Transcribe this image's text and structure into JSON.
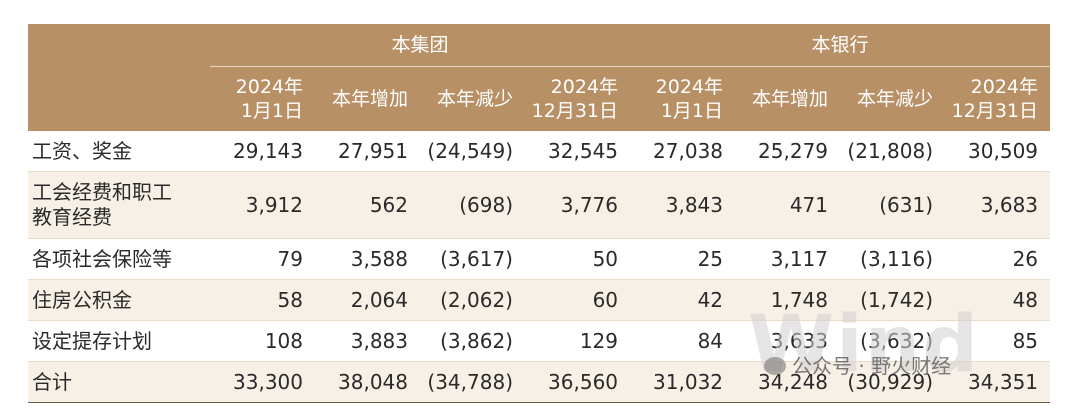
{
  "header": {
    "groups": [
      "本集团",
      "本银行"
    ],
    "columns": [
      [
        "2024年",
        "1月1日"
      ],
      [
        "本年增加"
      ],
      [
        "本年减少"
      ],
      [
        "2024年",
        "12月31日"
      ],
      [
        "2024年",
        "1月1日"
      ],
      [
        "本年增加"
      ],
      [
        "本年减少"
      ],
      [
        "2024年",
        "12月31日"
      ]
    ]
  },
  "rows": [
    {
      "label": [
        "工资、奖金"
      ],
      "values": [
        "29,143",
        "27,951",
        "(24,549)",
        "32,545",
        "27,038",
        "25,279",
        "(21,808)",
        "30,509"
      ]
    },
    {
      "label": [
        "工会经费和职工",
        "教育经费"
      ],
      "values": [
        "3,912",
        "562",
        "(698)",
        "3,776",
        "3,843",
        "471",
        "(631)",
        "3,683"
      ]
    },
    {
      "label": [
        "各项社会保险等"
      ],
      "values": [
        "79",
        "3,588",
        "(3,617)",
        "50",
        "25",
        "3,117",
        "(3,116)",
        "26"
      ]
    },
    {
      "label": [
        "住房公积金"
      ],
      "values": [
        "58",
        "2,064",
        "(2,062)",
        "60",
        "42",
        "1,748",
        "(1,742)",
        "48"
      ]
    },
    {
      "label": [
        "设定提存计划"
      ],
      "values": [
        "108",
        "3,883",
        "(3,862)",
        "129",
        "84",
        "3,633",
        "(3,632)",
        "85"
      ]
    },
    {
      "label": [
        "合计"
      ],
      "values": [
        "33,300",
        "38,048",
        "(34,788)",
        "36,560",
        "31,032",
        "34,248",
        "(30,929)",
        "34,351"
      ]
    }
  ],
  "watermark": {
    "big": "Wind",
    "badge": "公众号 · 野火财经"
  },
  "colors": {
    "header_bg": "#b89066",
    "stripe": "#f7f0e7"
  }
}
